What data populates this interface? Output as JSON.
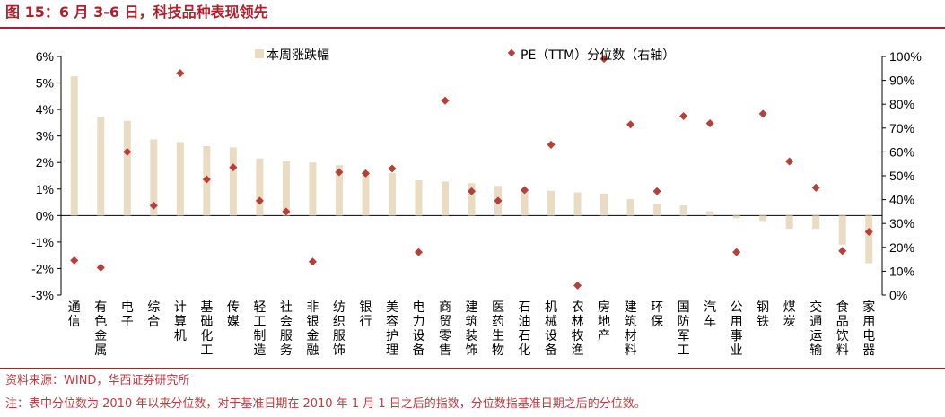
{
  "header": {
    "title": "图 15：6 月 3-6 日，科技品种表现领先"
  },
  "footer": {
    "source": "资料来源：WIND，华西证券研究所",
    "note": "注：表中分位数为 2010 年以来分位数，对于基准日期在 2010 年 1 月 1 日之后的指数，分位数指基准日期之后的分位数。"
  },
  "colors": {
    "bar": "#eadcc3",
    "marker": "#b5403a",
    "accent": "#b0202a"
  },
  "chart_data": {
    "type": "bar",
    "categories": [
      "通信",
      "有色金属",
      "电子",
      "综合",
      "计算机",
      "基础化工",
      "传媒",
      "轻工制造",
      "社会服务",
      "非银金融",
      "纺织服饰",
      "银行",
      "美容护理",
      "电力设备",
      "商贸零售",
      "建筑装饰",
      "医药生物",
      "石油石化",
      "机械设备",
      "农林牧渔",
      "房地产",
      "建筑材料",
      "环保",
      "国防军工",
      "汽车",
      "公用事业",
      "钢铁",
      "煤炭",
      "交通运输",
      "食品饮料",
      "家用电器"
    ],
    "series": [
      {
        "name": "本周涨跌幅",
        "type": "bar",
        "axis": "left",
        "values": [
          5.25,
          3.72,
          3.57,
          2.87,
          2.77,
          2.62,
          2.57,
          2.15,
          2.05,
          2.0,
          1.9,
          1.65,
          1.6,
          1.33,
          1.28,
          1.22,
          1.12,
          1.0,
          0.93,
          0.87,
          0.83,
          0.62,
          0.42,
          0.38,
          0.16,
          -0.1,
          -0.2,
          -0.5,
          -0.5,
          -1.1,
          -1.8
        ]
      },
      {
        "name": "PE（TTM）分位数（右轴）",
        "type": "scatter",
        "axis": "right",
        "values": [
          14.5,
          11.5,
          60,
          37.5,
          93,
          48.5,
          53.5,
          39.5,
          35,
          14,
          51.5,
          51,
          53,
          18,
          81.5,
          43.5,
          39.5,
          44,
          63,
          4,
          99,
          71.5,
          43.5,
          75,
          72,
          18,
          76,
          56,
          45,
          18.5,
          26.5
        ]
      }
    ],
    "legend": [
      "本周涨跌幅",
      "PE（TTM）分位数（右轴）"
    ],
    "legend_position": "top",
    "y_left": {
      "ticks": [
        "6%",
        "5%",
        "4%",
        "3%",
        "2%",
        "1%",
        "0%",
        "-1%",
        "-2%",
        "-3%"
      ],
      "ylim": [
        -3,
        6
      ]
    },
    "y_right": {
      "ticks": [
        "100%",
        "90%",
        "80%",
        "70%",
        "60%",
        "50%",
        "40%",
        "30%",
        "20%",
        "10%",
        "0%"
      ],
      "ylim": [
        0,
        100
      ]
    },
    "grid": false
  }
}
